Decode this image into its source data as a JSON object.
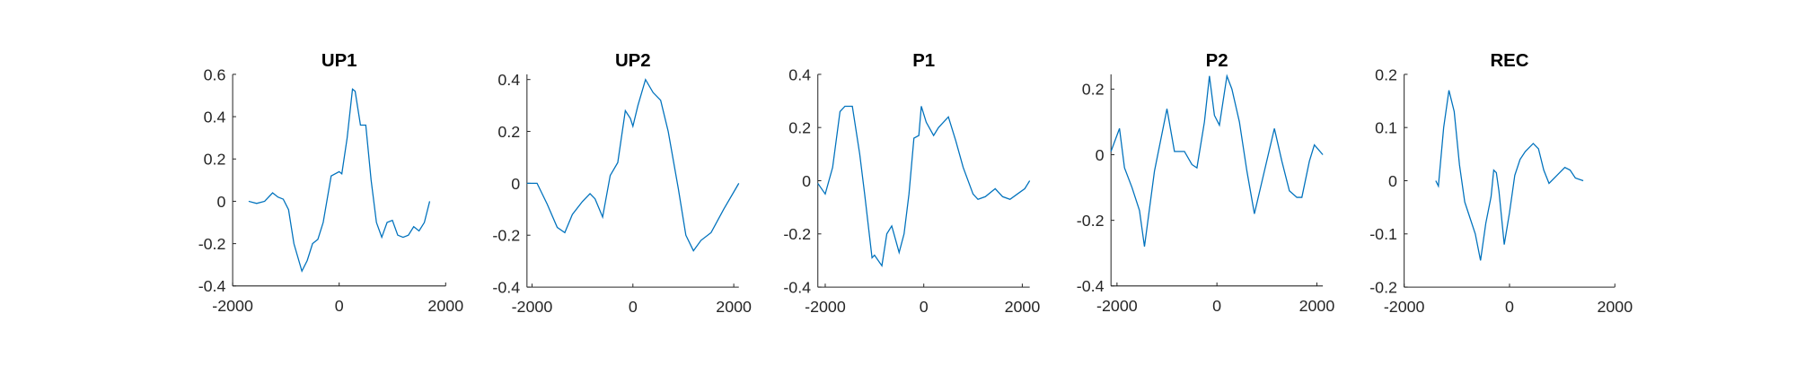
{
  "chart_data": [
    {
      "type": "line",
      "title": "UP1",
      "color": "#0072bd",
      "x": [
        -1700,
        -1550,
        -1400,
        -1250,
        -1150,
        -1050,
        -950,
        -850,
        -700,
        -600,
        -500,
        -400,
        -300,
        -150,
        0,
        50,
        150,
        250,
        300,
        400,
        500,
        600,
        700,
        800,
        900,
        1000,
        1100,
        1200,
        1300,
        1400,
        1500,
        1600,
        1700
      ],
      "values": [
        0,
        -0.01,
        0,
        0.04,
        0.02,
        0.01,
        -0.04,
        -0.2,
        -0.33,
        -0.28,
        -0.2,
        -0.18,
        -0.1,
        0.12,
        0.14,
        0.13,
        0.3,
        0.53,
        0.52,
        0.36,
        0.36,
        0.1,
        -0.1,
        -0.17,
        -0.1,
        -0.09,
        -0.16,
        -0.17,
        -0.16,
        -0.12,
        -0.14,
        -0.1,
        0
      ],
      "xlim": [
        -2000,
        2000
      ],
      "ylim": [
        -0.4,
        0.6
      ],
      "xticks": [
        -2000,
        0,
        2000
      ],
      "yticks": [
        -0.4,
        -0.2,
        0,
        0.2,
        0.4,
        0.6
      ]
    },
    {
      "type": "line",
      "title": "UP2",
      "color": "#0072bd",
      "x": [
        -2100,
        -1900,
        -1700,
        -1500,
        -1350,
        -1200,
        -1000,
        -850,
        -750,
        -600,
        -450,
        -300,
        -150,
        -50,
        0,
        100,
        250,
        400,
        550,
        700,
        900,
        1050,
        1200,
        1350,
        1550,
        1800,
        2100
      ],
      "values": [
        0,
        0,
        -0.08,
        -0.17,
        -0.19,
        -0.12,
        -0.07,
        -0.04,
        -0.06,
        -0.13,
        0.03,
        0.08,
        0.28,
        0.25,
        0.22,
        0.3,
        0.4,
        0.35,
        0.32,
        0.2,
        -0.02,
        -0.2,
        -0.26,
        -0.22,
        -0.19,
        -0.1,
        0
      ],
      "xlim": [
        -2100,
        2100
      ],
      "ylim": [
        -0.4,
        0.42
      ],
      "xticks": [
        -2000,
        0,
        2000
      ],
      "yticks": [
        -0.4,
        -0.2,
        0,
        0.2,
        0.4
      ]
    },
    {
      "type": "line",
      "title": "P1",
      "color": "#0072bd",
      "x": [
        -2150,
        -2000,
        -1850,
        -1700,
        -1600,
        -1450,
        -1300,
        -1200,
        -1050,
        -1000,
        -850,
        -750,
        -650,
        -500,
        -400,
        -300,
        -200,
        -100,
        -50,
        50,
        200,
        300,
        500,
        650,
        800,
        1000,
        1100,
        1250,
        1450,
        1600,
        1750,
        1900,
        2050,
        2150
      ],
      "values": [
        -0.01,
        -0.05,
        0.05,
        0.26,
        0.28,
        0.28,
        0.1,
        -0.05,
        -0.29,
        -0.28,
        -0.32,
        -0.2,
        -0.17,
        -0.27,
        -0.2,
        -0.05,
        0.16,
        0.17,
        0.28,
        0.22,
        0.17,
        0.2,
        0.24,
        0.15,
        0.05,
        -0.05,
        -0.07,
        -0.06,
        -0.03,
        -0.06,
        -0.07,
        -0.05,
        -0.03,
        0
      ],
      "xlim": [
        -2150,
        2150
      ],
      "ylim": [
        -0.4,
        0.4
      ],
      "xticks": [
        -2000,
        0,
        2000
      ],
      "yticks": [
        -0.4,
        -0.2,
        0,
        0.2,
        0.4
      ]
    },
    {
      "type": "line",
      "title": "P2",
      "color": "#0072bd",
      "x": [
        -2120,
        -1950,
        -1850,
        -1700,
        -1550,
        -1450,
        -1250,
        -1000,
        -850,
        -750,
        -650,
        -500,
        -400,
        -250,
        -150,
        -50,
        50,
        200,
        300,
        450,
        600,
        750,
        950,
        1150,
        1300,
        1450,
        1600,
        1700,
        1850,
        1950,
        2120
      ],
      "values": [
        0.01,
        0.08,
        -0.04,
        -0.1,
        -0.17,
        -0.28,
        -0.05,
        0.14,
        0.01,
        0.01,
        0.01,
        -0.03,
        -0.04,
        0.1,
        0.24,
        0.12,
        0.09,
        0.24,
        0.2,
        0.1,
        -0.05,
        -0.18,
        -0.05,
        0.08,
        -0.02,
        -0.11,
        -0.13,
        -0.13,
        -0.02,
        0.03,
        0
      ],
      "xlim": [
        -2120,
        2120
      ],
      "ylim": [
        -0.4,
        0.245
      ],
      "xticks": [
        -2000,
        0,
        2000
      ],
      "yticks": [
        -0.4,
        -0.2,
        0,
        0.2
      ]
    },
    {
      "type": "line",
      "title": "REC",
      "color": "#0072bd",
      "x": [
        -1400,
        -1350,
        -1250,
        -1150,
        -1050,
        -950,
        -850,
        -750,
        -650,
        -550,
        -450,
        -350,
        -300,
        -250,
        -200,
        -100,
        0,
        100,
        200,
        300,
        450,
        550,
        650,
        750,
        900,
        1050,
        1150,
        1250,
        1400
      ],
      "values": [
        0,
        -0.01,
        0.1,
        0.17,
        0.13,
        0.03,
        -0.04,
        -0.07,
        -0.1,
        -0.15,
        -0.08,
        -0.03,
        0.02,
        0.015,
        -0.02,
        -0.12,
        -0.06,
        0.01,
        0.04,
        0.055,
        0.07,
        0.06,
        0.02,
        -0.005,
        0.01,
        0.025,
        0.02,
        0.005,
        0
      ],
      "xlim": [
        -2000,
        2000
      ],
      "ylim": [
        -0.2,
        0.2
      ],
      "xticks": [
        -2000,
        0,
        2000
      ],
      "yticks": [
        -0.2,
        -0.1,
        0,
        0.1,
        0.2
      ]
    }
  ]
}
